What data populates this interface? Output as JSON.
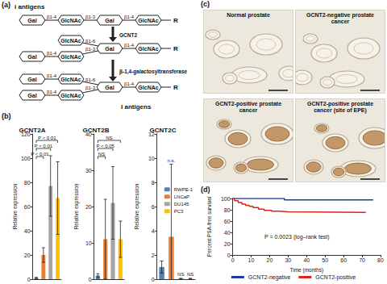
{
  "panel_labels": [
    "(a)",
    "(b)",
    "(c)",
    "(d)"
  ],
  "diagram": {
    "title_top": "i antigens",
    "title_bottom": "I antigens",
    "reducing_end": "R",
    "enzymes": [
      "GCNT2",
      "β-1,4-galactosyltransferase"
    ],
    "structures": [
      {
        "core": [
          {
            "residue": "Gal",
            "link": "β1-4"
          },
          {
            "residue": "GlcNAc",
            "link": "β1-3"
          },
          {
            "residue": "Gal",
            "link": "β1-4"
          },
          {
            "residue": "GlcNAc",
            "link": null
          }
        ],
        "arms": []
      },
      {
        "core": [
          {
            "residue": "Gal",
            "link": "β1-4"
          },
          {
            "residue": "GlcNAc",
            "link": null
          }
        ],
        "arms": [
          [
            {
              "residue": "GlcNAc",
              "link": "β1-6"
            }
          ],
          [
            {
              "residue": "Gal",
              "link": "β1-4"
            },
            {
              "residue": "GlcNAc",
              "link": "β1-3"
            }
          ]
        ]
      },
      {
        "core": [
          {
            "residue": "Gal",
            "link": "β1-4"
          },
          {
            "residue": "GlcNAc",
            "link": null
          }
        ],
        "arms": [
          [
            {
              "residue": "Gal",
              "link": "β1-4"
            },
            {
              "residue": "GlcNAc",
              "link": "β1-6"
            }
          ],
          [
            {
              "residue": "Gal",
              "link": "β1-4"
            },
            {
              "residue": "GlcNAc",
              "link": "β1-3"
            }
          ]
        ]
      }
    ]
  },
  "images": [
    {
      "caption": "Normal prostate",
      "stained": false
    },
    {
      "caption": "GCNT2-negative prostate cancer",
      "stained": false
    },
    {
      "caption": "GCNT2-positive prostate cancer",
      "stained": true
    },
    {
      "caption": "GCNT2-positive prostate cancer (site of EPE)",
      "stained": true
    }
  ],
  "chart_data": [
    {
      "type": "bar",
      "title": "GCNT2A",
      "y_label": "Relative expression",
      "categories": [
        "RWPE-1",
        "LNCaP",
        "DU145",
        "PC3"
      ],
      "values": [
        1,
        20,
        77,
        67
      ],
      "errors": [
        0.5,
        6,
        25,
        30
      ],
      "colors": [
        "#4f81bd",
        "#ed7d31",
        "#a5a5a5",
        "#ffc000"
      ],
      "ylim": [
        0,
        120
      ],
      "yticks": [
        0,
        20,
        40,
        60,
        80,
        100,
        120
      ],
      "grid": false,
      "tick_labels": "y",
      "annotations": [
        {
          "from": "RWPE-1",
          "to": "LNCaP",
          "text": "P < 0.01"
        },
        {
          "from": "RWPE-1",
          "to": "DU145",
          "text": "P < 0.01"
        },
        {
          "from": "RWPE-1",
          "to": "PC3",
          "text": "P < 0.01"
        }
      ]
    },
    {
      "type": "bar",
      "title": "GCNT2B",
      "y_label": "Relative expression",
      "categories": [
        "RWPE-1",
        "LNCaP",
        "DU145",
        "PC3"
      ],
      "values": [
        1,
        11,
        21,
        11
      ],
      "errors": [
        0.5,
        11,
        10,
        5
      ],
      "colors": [
        "#4f81bd",
        "#ed7d31",
        "#a5a5a5",
        "#ffc000"
      ],
      "ylim": [
        0,
        40
      ],
      "yticks": [
        0,
        10,
        20,
        30,
        40
      ],
      "grid": false,
      "tick_labels": "y",
      "annotations": [
        {
          "from": "RWPE-1",
          "to": "LNCaP",
          "text": "NS"
        },
        {
          "from": "RWPE-1",
          "to": "DU145",
          "text": "P < 0.05"
        },
        {
          "from": "RWPE-1",
          "to": "PC3",
          "text": "NS"
        }
      ]
    },
    {
      "type": "bar",
      "title": "GCNT2C",
      "y_label": "Relative expression",
      "categories": [
        "RWPE-1",
        "LNCaP",
        "DU145",
        "PC3"
      ],
      "values": [
        1,
        3.5,
        0.05,
        0.05
      ],
      "errors": [
        0.5,
        6,
        0.02,
        0.02
      ],
      "colors": [
        "#4f81bd",
        "#ed7d31",
        "#a5a5a5",
        "#ffc000"
      ],
      "ylim": [
        0,
        12
      ],
      "yticks": [
        0,
        2,
        4,
        6,
        8,
        10,
        12
      ],
      "grid": false,
      "tick_labels": "y",
      "legend": "right",
      "annotations": [
        {
          "to": "LNCaP",
          "text": "n.s."
        },
        {
          "to": "DU145",
          "text": "NS"
        },
        {
          "to": "PC3",
          "text": "NS"
        }
      ]
    },
    {
      "type": "step",
      "x_label": "Time (months)",
      "y_label": "Percent PSA-free survival",
      "annotation": "P = 0.0023 (log–rank test)",
      "xlim": [
        0,
        80
      ],
      "xticks": [
        0,
        10,
        20,
        30,
        40,
        50,
        60,
        70,
        80
      ],
      "ylim": [
        0,
        100
      ],
      "yticks": [
        0,
        20,
        40,
        60,
        80,
        100
      ],
      "grid": false,
      "legend": "bottom",
      "series": [
        {
          "name": "GCNT2-negative",
          "color": "#1f3a9e",
          "x": [
            0,
            28,
            76
          ],
          "values": [
            100,
            97.5,
            97.5
          ]
        },
        {
          "name": "GCNT2-positive",
          "color": "#d7261e",
          "x": [
            0,
            1,
            3,
            5,
            7,
            9,
            11,
            14,
            17,
            21,
            25,
            30,
            72
          ],
          "values": [
            100,
            96,
            93,
            90,
            88,
            86,
            84,
            81,
            79,
            77.5,
            76.5,
            75.5,
            75.5
          ]
        }
      ]
    }
  ]
}
